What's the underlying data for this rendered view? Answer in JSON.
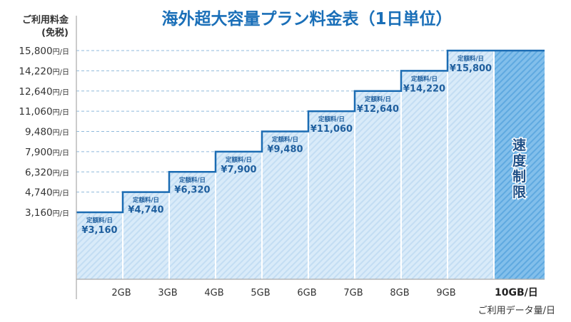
{
  "chart_data": {
    "type": "bar",
    "title": "海外超大容量プラン料金表（1日単位）",
    "ylabel": [
      "ご利用料金",
      "(免税)"
    ],
    "xlabel": "ご利用データ量/日",
    "y_unit": "円/日",
    "y_ticks": [
      3160,
      4740,
      6320,
      7900,
      9480,
      11060,
      12640,
      14220,
      15800
    ],
    "y_tick_labels": [
      "3,160",
      "4,740",
      "6,320",
      "7,900",
      "9,480",
      "11,060",
      "12,640",
      "14,220",
      "15,800"
    ],
    "ylim": [
      0,
      17000
    ],
    "grid": "dashed horizontal at tick values",
    "categories": [
      "",
      "2GB",
      "3GB",
      "4GB",
      "5GB",
      "6GB",
      "7GB",
      "8GB",
      "9GB",
      "10GB/日"
    ],
    "values": [
      3160,
      4740,
      6320,
      7900,
      9480,
      11060,
      12640,
      14220,
      15800
    ],
    "bar_caption": "定額料/日",
    "bar_value_labels": [
      "¥3,160",
      "¥4,740",
      "¥6,320",
      "¥7,900",
      "¥9,480",
      "¥11,060",
      "¥12,640",
      "¥14,220",
      "¥15,800"
    ],
    "limit_segment": {
      "label": "速度制限",
      "value": 15800
    },
    "colors": {
      "title": "#1a6fb8",
      "bar_fill": "#d6e9f8",
      "bar_stripe": "#bcd9f1",
      "limit_fill": "#7fbde9",
      "limit_stripe": "#5aa7e0",
      "step_line": "#1b6cb3",
      "grid": "#8fb9dc"
    }
  }
}
